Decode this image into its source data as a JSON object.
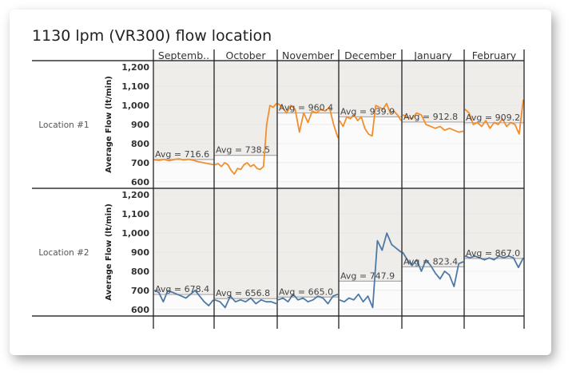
{
  "chart_data": {
    "type": "line",
    "title": "1130 lpm (VR300) flow location",
    "ylabel": "Average Flow (lt/min)",
    "yticks": [
      600,
      700,
      800,
      900,
      1000,
      1100,
      1200
    ],
    "ytick_labels": [
      "600",
      "700",
      "800",
      "900",
      "1,000",
      "1,100",
      "1,200"
    ],
    "ylim": [
      570,
      1230
    ],
    "columns": [
      "Septemb..",
      "October",
      "November",
      "December",
      "January",
      "February"
    ],
    "rows": [
      {
        "label": "Location #1",
        "color": "#f28e2b",
        "avg_labels": [
          "Avg = 716.6",
          "Avg = 738.5",
          "Avg = 960.4",
          "Avg = 939.9",
          "Avg = 912.8",
          "Avg = 909.2"
        ],
        "avgs": [
          716.6,
          738.5,
          960.4,
          939.9,
          912.8,
          909.2
        ],
        "values": [
          [
            715,
            712,
            718,
            710,
            716,
            720,
            714,
            718,
            712,
            705,
            700,
            695,
            690
          ],
          [
            690,
            695,
            680,
            700,
            690,
            660,
            640,
            670,
            665,
            690,
            700,
            680,
            690,
            670,
            665,
            680,
            900,
            1000,
            990,
            1010
          ],
          [
            1010,
            990,
            960,
            1000,
            980,
            860,
            960,
            910,
            970,
            960,
            980,
            970,
            990,
            900,
            830
          ],
          [
            920,
            890,
            940,
            930,
            950,
            920,
            940,
            880,
            850,
            840,
            1000,
            990,
            980,
            1010,
            960,
            970,
            950,
            920
          ],
          [
            950,
            940,
            930,
            960,
            950,
            900,
            890,
            880,
            890,
            870,
            880,
            870,
            860,
            865
          ],
          [
            980,
            960,
            900,
            910,
            890,
            920,
            880,
            910,
            900,
            930,
            890,
            910,
            900,
            850,
            1030
          ]
        ]
      },
      {
        "label": "Location #2",
        "color": "#4e79a7",
        "avg_labels": [
          "Avg = 678.4",
          "Avg = 656.8",
          "Avg = 665.0",
          "Avg = 747.9",
          "Avg = 823.4",
          "Avg = 867.0"
        ],
        "avgs": [
          678.4,
          656.8,
          665.0,
          747.9,
          823.4,
          867.0
        ],
        "values": [
          [
            700,
            690,
            640,
            700,
            690,
            680,
            670,
            660,
            680,
            700,
            670,
            640,
            620,
            650
          ],
          [
            650,
            640,
            610,
            670,
            640,
            650,
            640,
            660,
            630,
            650,
            640,
            640,
            630
          ],
          [
            650,
            660,
            640,
            680,
            650,
            660,
            640,
            650,
            670,
            660,
            630,
            670,
            680
          ],
          [
            650,
            640,
            660,
            650,
            680,
            640,
            670,
            610,
            960,
            910,
            1000,
            940,
            920,
            900
          ],
          [
            900,
            860,
            830,
            860,
            800,
            860,
            830,
            790,
            760,
            800,
            780,
            720,
            840,
            850
          ],
          [
            880,
            870,
            880,
            870,
            860,
            870,
            860,
            880,
            870,
            880,
            870,
            820,
            870
          ]
        ]
      }
    ]
  }
}
